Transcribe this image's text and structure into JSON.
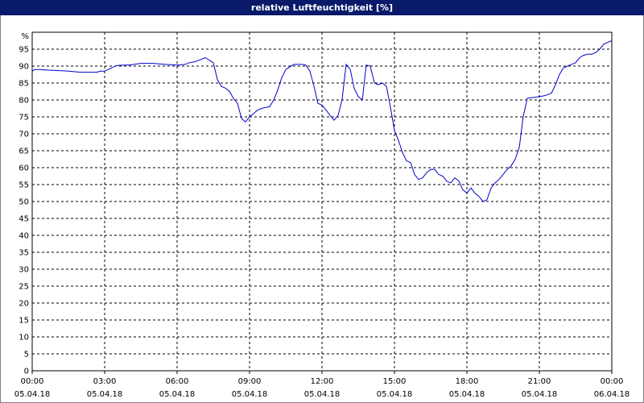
{
  "window": {
    "title": "relative Luftfeuchtigkeit [%]"
  },
  "chart_data": {
    "type": "line",
    "title": "relative Luftfeuchtigkeit [%]",
    "ylabel": "%",
    "xlabel": "",
    "ylim": [
      0,
      100
    ],
    "y_ticks": [
      0,
      5,
      10,
      15,
      20,
      25,
      30,
      35,
      40,
      45,
      50,
      55,
      60,
      65,
      70,
      75,
      80,
      85,
      90,
      95
    ],
    "xlim_hours": [
      0,
      24
    ],
    "x_ticks": [
      {
        "time": "00:00",
        "date": "05.04.18",
        "hour": 0
      },
      {
        "time": "03:00",
        "date": "05.04.18",
        "hour": 3
      },
      {
        "time": "06:00",
        "date": "05.04.18",
        "hour": 6
      },
      {
        "time": "09:00",
        "date": "05.04.18",
        "hour": 9
      },
      {
        "time": "12:00",
        "date": "05.04.18",
        "hour": 12
      },
      {
        "time": "15:00",
        "date": "05.04.18",
        "hour": 15
      },
      {
        "time": "18:00",
        "date": "05.04.18",
        "hour": 18
      },
      {
        "time": "21:00",
        "date": "05.04.18",
        "hour": 21
      },
      {
        "time": "00:00",
        "date": "06.04.18",
        "hour": 24
      }
    ],
    "grid": true,
    "line_color": "#0000cc",
    "series": [
      {
        "x": [
          0,
          0.1,
          0.33,
          0.67,
          1.0,
          1.33,
          1.5,
          2.0,
          2.5,
          2.67,
          2.83,
          3.0,
          3.5,
          3.83,
          4.0,
          4.5,
          4.83,
          5.0,
          5.5,
          6.0,
          6.33,
          6.5,
          6.67,
          6.83,
          7.0,
          7.17,
          7.5,
          7.67,
          7.83,
          8.0,
          8.17,
          8.33,
          8.5,
          8.67,
          8.83,
          9.0,
          9.17,
          9.33,
          9.5,
          9.67,
          9.83,
          10.0,
          10.17,
          10.33,
          10.5,
          10.83,
          11.0,
          11.17,
          11.33,
          11.5,
          11.67,
          11.83,
          12.0,
          12.17,
          12.33,
          12.5,
          12.67,
          12.83,
          13.0,
          13.17,
          13.33,
          13.5,
          13.67,
          13.83,
          14.0,
          14.17,
          14.33,
          14.5,
          14.67,
          14.83,
          15.0,
          15.17,
          15.33,
          15.5,
          15.67,
          15.83,
          16.0,
          16.17,
          16.33,
          16.5,
          16.67,
          16.83,
          17.0,
          17.17,
          17.33,
          17.5,
          17.67,
          17.83,
          18.0,
          18.17,
          18.33,
          18.5,
          18.67,
          18.83,
          19.0,
          19.17,
          19.33,
          19.5,
          19.67,
          19.83,
          20.0,
          20.17,
          20.33,
          20.5,
          20.67,
          20.83,
          21.0,
          21.17,
          21.33,
          21.5,
          21.67,
          21.83,
          22.0,
          22.17,
          22.33,
          22.5,
          22.67,
          22.83,
          23.0,
          23.17,
          23.33,
          23.5,
          23.67,
          23.83,
          24.0
        ],
        "y": [
          88.5,
          89,
          89,
          88.8,
          88.7,
          88.6,
          88.5,
          88.2,
          88.2,
          88.2,
          88.5,
          88.5,
          90.2,
          90.3,
          90.3,
          90.8,
          90.8,
          90.8,
          90.5,
          90.3,
          90.5,
          91.0,
          91.2,
          91.5,
          92.0,
          92.5,
          91.0,
          86.0,
          84.0,
          83.5,
          82.5,
          80.5,
          79.0,
          74.5,
          73.5,
          75.0,
          76.0,
          77.0,
          77.5,
          77.8,
          78.0,
          80.0,
          83.0,
          86.5,
          89.0,
          90.5,
          90.5,
          90.5,
          90.3,
          88.5,
          84.0,
          79.0,
          78.5,
          77.0,
          75.5,
          74.0,
          75.5,
          80.0,
          90.5,
          89.0,
          83.5,
          81.0,
          80.0,
          90.3,
          90.0,
          85.0,
          84.5,
          85.0,
          84.0,
          78.0,
          71.0,
          68.0,
          64.5,
          62.0,
          61.5,
          58.0,
          56.5,
          57.0,
          58.5,
          59.5,
          59.5,
          58.0,
          57.5,
          56.0,
          55.5,
          57.0,
          56.0,
          53.5,
          52.5,
          54.0,
          52.5,
          51.5,
          50.0,
          50.5,
          54.0,
          55.5,
          56.5,
          58.0,
          59.5,
          60.5,
          62.5,
          66.0,
          75.0,
          80.5,
          80.7,
          80.8,
          81.0,
          81.2,
          81.5,
          82.0,
          84.5,
          87.5,
          89.5,
          90.0,
          90.5,
          91.0,
          92.5,
          93.2,
          93.5,
          93.5,
          94.0,
          95.0,
          96.5,
          97.0,
          97.5
        ]
      }
    ]
  }
}
